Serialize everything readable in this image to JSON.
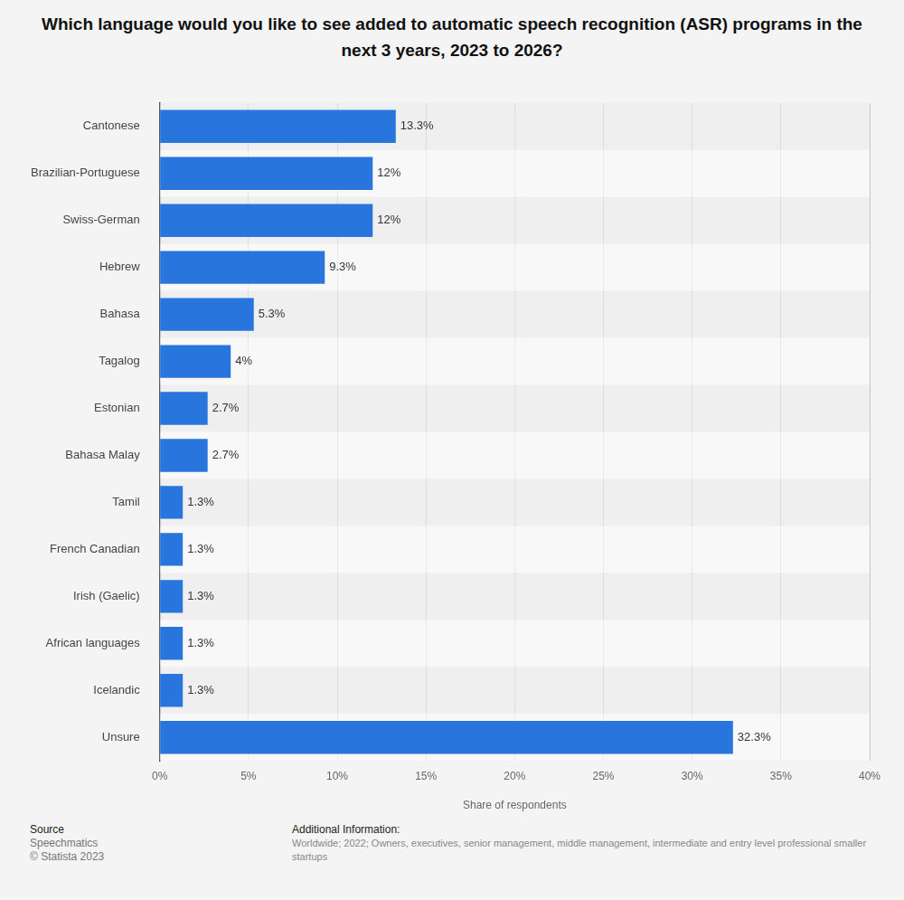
{
  "chart_data": {
    "type": "bar",
    "orientation": "horizontal",
    "title": "Which language would you like to see added to automatic speech recognition (ASR) programs in the next 3 years, 2023 to 2026?",
    "x_label": "Share of respondents",
    "categories": [
      "Cantonese",
      "Brazilian-Portuguese",
      "Swiss-German",
      "Hebrew",
      "Bahasa",
      "Tagalog",
      "Estonian",
      "Bahasa Malay",
      "Tamil",
      "French Canadian",
      "Irish (Gaelic)",
      "African languages",
      "Icelandic",
      "Unsure"
    ],
    "values": [
      13.3,
      12,
      12,
      9.3,
      5.3,
      4,
      2.7,
      2.7,
      1.3,
      1.3,
      1.3,
      1.3,
      1.3,
      32.3
    ],
    "value_labels": [
      "13.3%",
      "12%",
      "12%",
      "9.3%",
      "5.3%",
      "4%",
      "2.7%",
      "2.7%",
      "1.3%",
      "1.3%",
      "1.3%",
      "1.3%",
      "1.3%",
      "32.3%"
    ],
    "color": "#2876dd",
    "xlim": [
      0,
      40
    ],
    "xticks": [
      {
        "value": 0,
        "label": "0%"
      },
      {
        "value": 5,
        "label": "5%"
      },
      {
        "value": 10,
        "label": "10%"
      },
      {
        "value": 15,
        "label": "15%"
      },
      {
        "value": 20,
        "label": "20%"
      },
      {
        "value": 25,
        "label": "25%"
      },
      {
        "value": 30,
        "label": "30%"
      },
      {
        "value": 35,
        "label": "35%"
      },
      {
        "value": 40,
        "label": "40%"
      }
    ],
    "grid": true,
    "data_labels": true,
    "source": {
      "heading": "Source",
      "lines": [
        "Speechmatics",
        "© Statista 2023"
      ]
    },
    "additional_information": {
      "heading": "Additional Information:",
      "text": "Worldwide; 2022; Owners, executives, senior management, middle management, intermediate and entry level professional smaller startups"
    }
  }
}
